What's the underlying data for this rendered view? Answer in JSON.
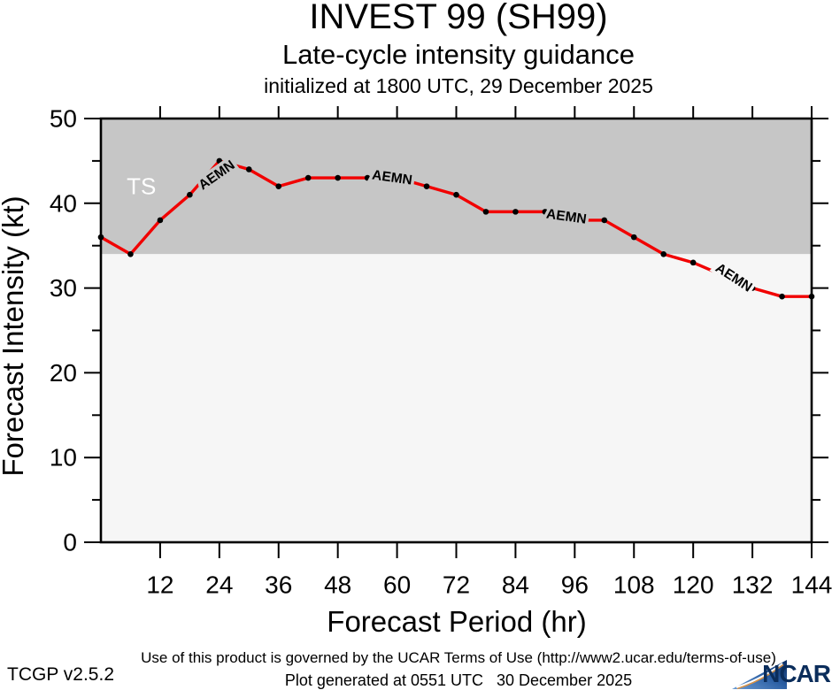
{
  "header": {
    "title": "INVEST 99 (SH99)",
    "subtitle": "Late-cycle intensity guidance",
    "init_line": "initialized at 1800 UTC, 29 December 2025"
  },
  "chart_data": {
    "type": "line",
    "title": "INVEST 99 (SH99)",
    "xlabel": "Forecast Period (hr)",
    "ylabel": "Forecast Intensity (kt)",
    "xlim": [
      0,
      144
    ],
    "ylim": [
      0,
      50
    ],
    "x_major_ticks": [
      12,
      24,
      36,
      48,
      60,
      72,
      84,
      96,
      108,
      120,
      132,
      144
    ],
    "y_major_ticks": [
      0,
      10,
      20,
      30,
      40,
      50
    ],
    "y_minor_ticks": [
      5,
      15,
      25,
      35,
      45
    ],
    "grid": false,
    "ts_threshold": 34,
    "band_upper_color": "#c6c6c6",
    "band_lower_color": "#f6f6f6",
    "line_color": "#f10000",
    "dot_color": "#000000",
    "series": [
      {
        "name": "AEMN",
        "x": [
          0,
          6,
          12,
          18,
          24,
          30,
          36,
          42,
          48,
          54,
          60,
          66,
          72,
          78,
          84,
          90,
          96,
          102,
          108,
          114,
          120,
          126,
          132,
          138,
          144
        ],
        "y": [
          36,
          34,
          38,
          41,
          45,
          44,
          42,
          43,
          43,
          43,
          43,
          42,
          41,
          39,
          39,
          39,
          38,
          38,
          36,
          34,
          33,
          31.5,
          30,
          29,
          29
        ]
      }
    ],
    "dots_hidden_at_x": [
      60,
      96,
      126
    ],
    "region_labels": [
      {
        "text": "TS",
        "t": 8.2,
        "kt": 42.0,
        "color": "#ffffff",
        "size": 26
      }
    ],
    "annotations": [
      {
        "text": "AEMN",
        "t": 23.5,
        "kt": 43.3,
        "rot": -35,
        "bg": "#c6c6c6"
      },
      {
        "text": "AEMN",
        "t": 59.0,
        "kt": 43.0,
        "rot": 8,
        "bg": "#c6c6c6"
      },
      {
        "text": "AEMN",
        "t": 94.3,
        "kt": 38.4,
        "rot": 8,
        "bg": "#c6c6c6"
      },
      {
        "text": "AEMN",
        "t": 128.2,
        "kt": 31.2,
        "rot": 33,
        "bg": "#f6f6f6"
      }
    ]
  },
  "footer": {
    "terms": "Use of this product is governed by the UCAR Terms of Use (http://www2.ucar.edu/terms-of-use)",
    "version": "TCGP v2.5.2",
    "generated": "Plot generated at 0551 UTC   30 December 2025",
    "logo_text": "NCAR"
  }
}
